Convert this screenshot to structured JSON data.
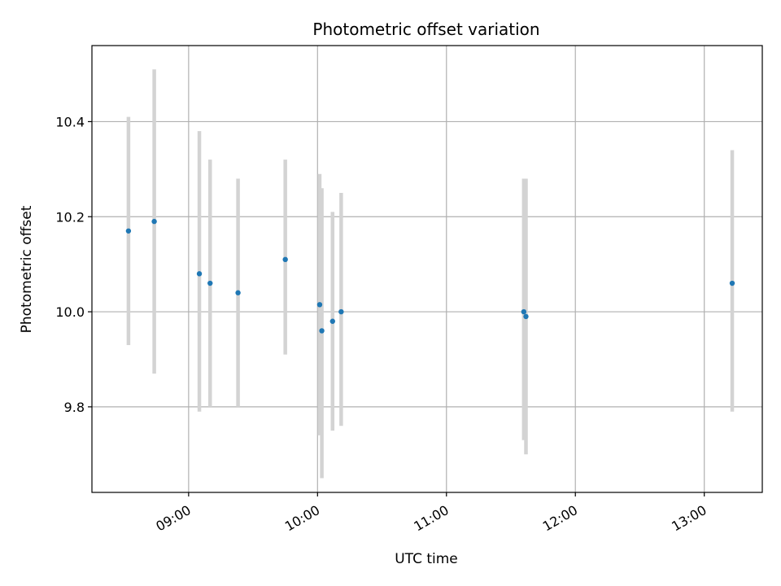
{
  "chart_data": {
    "type": "scatter",
    "title": "Photometric offset variation",
    "xlabel": "UTC time",
    "ylabel": "Photometric offset",
    "x_tick_labels": [
      "09:00",
      "10:00",
      "11:00",
      "12:00",
      "13:00"
    ],
    "y_tick_labels": [
      "9.8",
      "10.0",
      "10.2",
      "10.4"
    ],
    "xlim": [
      "08:15",
      "13:27"
    ],
    "ylim": [
      9.62,
      10.56
    ],
    "grid": true,
    "colors": {
      "marker": "#1f77b4",
      "errorbar": "#d3d3d3",
      "grid": "#b0b0b0",
      "axes": "#000000"
    },
    "series": [
      {
        "points": [
          {
            "x": "08:32",
            "y": 10.17,
            "ymin": 9.93,
            "ymax": 10.41
          },
          {
            "x": "08:44",
            "y": 10.19,
            "ymin": 9.87,
            "ymax": 10.51
          },
          {
            "x": "09:05",
            "y": 10.08,
            "ymin": 9.79,
            "ymax": 10.38
          },
          {
            "x": "09:10",
            "y": 10.06,
            "ymin": 9.8,
            "ymax": 10.32
          },
          {
            "x": "09:23",
            "y": 10.04,
            "ymin": 9.8,
            "ymax": 10.28
          },
          {
            "x": "09:45",
            "y": 10.11,
            "ymin": 9.91,
            "ymax": 10.32
          },
          {
            "x": "10:01",
            "y": 10.015,
            "ymin": 9.74,
            "ymax": 10.29
          },
          {
            "x": "10:02",
            "y": 9.96,
            "ymin": 9.65,
            "ymax": 10.26
          },
          {
            "x": "10:07",
            "y": 9.98,
            "ymin": 9.75,
            "ymax": 10.21
          },
          {
            "x": "10:11",
            "y": 10.0,
            "ymin": 9.76,
            "ymax": 10.25
          },
          {
            "x": "11:36",
            "y": 10.0,
            "ymin": 9.73,
            "ymax": 10.28
          },
          {
            "x": "11:37",
            "y": 9.99,
            "ymin": 9.7,
            "ymax": 10.28
          },
          {
            "x": "13:13",
            "y": 10.06,
            "ymin": 9.79,
            "ymax": 10.34
          }
        ]
      }
    ]
  }
}
